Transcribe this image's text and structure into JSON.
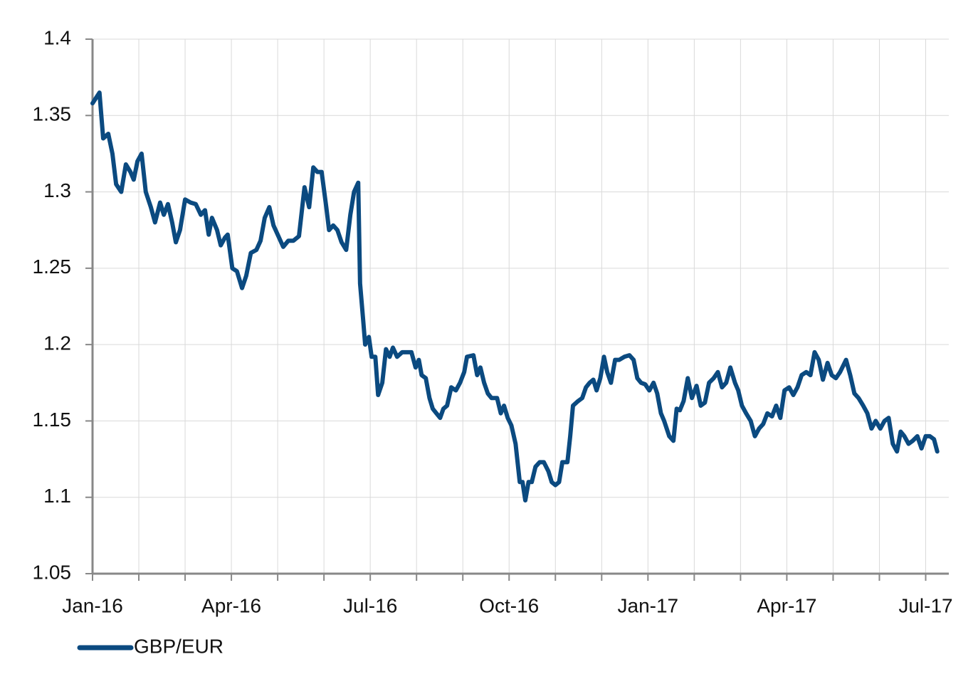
{
  "chart_data": {
    "type": "line",
    "x": [
      0,
      0.15,
      0.23,
      0.34,
      0.43,
      0.51,
      0.62,
      0.72,
      0.82,
      0.89,
      0.97,
      1.06,
      1.15,
      1.26,
      1.35,
      1.46,
      1.54,
      1.63,
      1.72,
      1.8,
      1.89,
      2,
      2.12,
      2.23,
      2.34,
      2.43,
      2.51,
      2.58,
      2.69,
      2.77,
      2.86,
      2.92,
      3.02,
      3.12,
      3.23,
      3.32,
      3.42,
      3.54,
      3.63,
      3.72,
      3.82,
      3.91,
      4,
      4.12,
      4.23,
      4.34,
      4.46,
      4.58,
      4.68,
      4.77,
      4.86,
      4.95,
      5.05,
      5.11,
      5.2,
      5.29,
      5.38,
      5.48,
      5.57,
      5.65,
      5.74,
      5.78,
      5.85,
      5.89,
      5.97,
      6.03,
      6.11,
      6.17,
      6.26,
      6.34,
      6.42,
      6.49,
      6.58,
      6.69,
      6.8,
      6.89,
      6.98,
      7.05,
      7.11,
      7.2,
      7.28,
      7.35,
      7.43,
      7.51,
      7.58,
      7.66,
      7.75,
      7.85,
      7.94,
      8.03,
      8.09,
      8.23,
      8.31,
      8.38,
      8.46,
      8.54,
      8.62,
      8.74,
      8.82,
      8.89,
      8.97,
      9.05,
      9.14,
      9.23,
      9.29,
      9.35,
      9.42,
      9.49,
      9.57,
      9.66,
      9.75,
      9.85,
      9.92,
      10,
      10.08,
      10.15,
      10.26,
      10.32,
      10.38,
      10.49,
      10.58,
      10.66,
      10.74,
      10.82,
      10.89,
      10.97,
      11.05,
      11.12,
      11.2,
      11.29,
      11.38,
      11.49,
      11.6,
      11.69,
      11.77,
      11.85,
      11.94,
      12.03,
      12.12,
      12.2,
      12.28,
      12.35,
      12.46,
      12.55,
      12.62,
      12.69,
      12.77,
      12.86,
      12.95,
      13.05,
      13.14,
      13.23,
      13.32,
      13.42,
      13.51,
      13.6,
      13.69,
      13.78,
      13.88,
      13.95,
      14.03,
      14.12,
      14.22,
      14.31,
      14.4,
      14.49,
      14.58,
      14.68,
      14.77,
      14.86,
      14.95,
      15.05,
      15.14,
      15.23,
      15.32,
      15.42,
      15.51,
      15.6,
      15.69,
      15.78,
      15.88,
      15.97,
      16.06,
      16.15,
      16.28,
      16.37,
      16.46,
      16.55,
      16.65,
      16.74,
      16.83,
      16.92,
      17.02,
      17.11,
      17.2,
      17.29,
      17.38,
      17.46,
      17.54,
      17.63,
      17.72,
      17.82,
      17.91,
      18,
      18.09,
      18.18,
      18.25
    ],
    "series": [
      {
        "name": "GBP/EUR",
        "color": "#0b4a80",
        "values": [
          1.358,
          1.365,
          1.335,
          1.338,
          1.325,
          1.305,
          1.3,
          1.318,
          1.313,
          1.308,
          1.32,
          1.325,
          1.3,
          1.29,
          1.28,
          1.293,
          1.285,
          1.292,
          1.28,
          1.267,
          1.275,
          1.295,
          1.293,
          1.292,
          1.285,
          1.288,
          1.272,
          1.283,
          1.275,
          1.265,
          1.27,
          1.272,
          1.25,
          1.248,
          1.237,
          1.245,
          1.26,
          1.262,
          1.268,
          1.283,
          1.29,
          1.278,
          1.272,
          1.264,
          1.268,
          1.268,
          1.271,
          1.303,
          1.29,
          1.316,
          1.313,
          1.313,
          1.29,
          1.275,
          1.278,
          1.275,
          1.267,
          1.262,
          1.285,
          1.3,
          1.306,
          1.24,
          1.215,
          1.2,
          1.205,
          1.192,
          1.192,
          1.167,
          1.175,
          1.197,
          1.192,
          1.198,
          1.192,
          1.195,
          1.195,
          1.195,
          1.185,
          1.19,
          1.18,
          1.178,
          1.165,
          1.158,
          1.155,
          1.152,
          1.158,
          1.16,
          1.172,
          1.17,
          1.175,
          1.182,
          1.192,
          1.193,
          1.18,
          1.185,
          1.175,
          1.168,
          1.165,
          1.165,
          1.155,
          1.16,
          1.152,
          1.147,
          1.135,
          1.11,
          1.11,
          1.098,
          1.11,
          1.11,
          1.12,
          1.123,
          1.123,
          1.117,
          1.11,
          1.108,
          1.11,
          1.123,
          1.123,
          1.14,
          1.16,
          1.163,
          1.165,
          1.172,
          1.175,
          1.177,
          1.17,
          1.178,
          1.192,
          1.182,
          1.175,
          1.19,
          1.19,
          1.192,
          1.193,
          1.19,
          1.178,
          1.175,
          1.174,
          1.17,
          1.175,
          1.168,
          1.155,
          1.15,
          1.14,
          1.137,
          1.158,
          1.157,
          1.163,
          1.178,
          1.165,
          1.173,
          1.16,
          1.162,
          1.175,
          1.178,
          1.182,
          1.172,
          1.175,
          1.185,
          1.175,
          1.17,
          1.16,
          1.155,
          1.15,
          1.14,
          1.145,
          1.148,
          1.155,
          1.153,
          1.16,
          1.152,
          1.17,
          1.172,
          1.167,
          1.172,
          1.18,
          1.182,
          1.18,
          1.195,
          1.19,
          1.177,
          1.188,
          1.18,
          1.178,
          1.182,
          1.19,
          1.18,
          1.168,
          1.165,
          1.16,
          1.155,
          1.145,
          1.15,
          1.145,
          1.15,
          1.152,
          1.135,
          1.13,
          1.143,
          1.14,
          1.135,
          1.137,
          1.14,
          1.132,
          1.14,
          1.14,
          1.138,
          1.13
        ]
      }
    ],
    "xlim": [
      0,
      18.5
    ],
    "xticks": [
      {
        "value": 0,
        "label": "Jan-16"
      },
      {
        "value": 3,
        "label": "Apr-16"
      },
      {
        "value": 6,
        "label": "Jul-16"
      },
      {
        "value": 9,
        "label": "Oct-16"
      },
      {
        "value": 12,
        "label": "Jan-17"
      },
      {
        "value": 15,
        "label": "Apr-17"
      },
      {
        "value": 18,
        "label": "Jul-17"
      }
    ],
    "xminor": [
      1,
      2,
      4,
      5,
      7,
      8,
      10,
      11,
      13,
      14,
      16,
      17
    ],
    "ylim": [
      1.05,
      1.4
    ],
    "yticks": [
      1.05,
      1.1,
      1.15,
      1.2,
      1.25,
      1.3,
      1.35,
      1.4
    ],
    "grid": true,
    "legend": "bottom-left"
  }
}
